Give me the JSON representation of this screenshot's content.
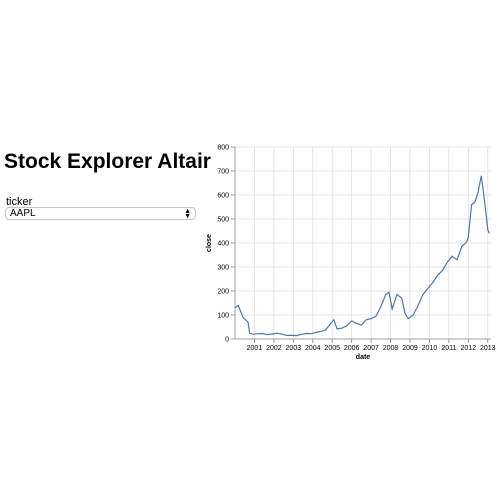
{
  "app": {
    "title": "Stock Explorer Altair"
  },
  "controls": {
    "ticker_label": "ticker",
    "ticker_value": "AAPL"
  },
  "colors": {
    "line": "#4c78a8",
    "grid": "#dddddd",
    "axis": "#888888"
  },
  "chart_data": {
    "type": "line",
    "xlabel": "date",
    "ylabel": "close",
    "xlim": [
      "2000-01",
      "2013-03"
    ],
    "ylim": [
      0,
      800
    ],
    "y_ticks": [
      0,
      100,
      200,
      300,
      400,
      500,
      600,
      700,
      800
    ],
    "x_tick_labels": [
      "2001",
      "2002",
      "2003",
      "2004",
      "2005",
      "2006",
      "2007",
      "2008",
      "2009",
      "2010",
      "2011",
      "2012",
      "2013"
    ],
    "grid": true,
    "series": [
      {
        "x": [
          "2000-01",
          "2000-03",
          "2000-06",
          "2000-09",
          "2000-10",
          "2000-12",
          "2001-03",
          "2001-06",
          "2001-09",
          "2001-12",
          "2002-03",
          "2002-06",
          "2002-09",
          "2002-12",
          "2003-03",
          "2003-06",
          "2003-09",
          "2003-12",
          "2004-03",
          "2004-06",
          "2004-09",
          "2004-12",
          "2005-02",
          "2005-04",
          "2005-07",
          "2005-10",
          "2006-01",
          "2006-04",
          "2006-07",
          "2006-10",
          "2007-01",
          "2007-04",
          "2007-07",
          "2007-10",
          "2007-12",
          "2008-02",
          "2008-05",
          "2008-08",
          "2008-10",
          "2008-12",
          "2009-03",
          "2009-06",
          "2009-09",
          "2009-12",
          "2010-03",
          "2010-06",
          "2010-09",
          "2010-12",
          "2011-03",
          "2011-06",
          "2011-09",
          "2011-12",
          "2012-01",
          "2012-03",
          "2012-05",
          "2012-07",
          "2012-09",
          "2012-10",
          "2012-12",
          "2013-01",
          "2013-02"
        ],
        "y": [
          130,
          140,
          90,
          70,
          25,
          20,
          22,
          23,
          18,
          21,
          24,
          20,
          15,
          15,
          14,
          19,
          23,
          22,
          27,
          32,
          38,
          64,
          80,
          42,
          45,
          55,
          75,
          65,
          58,
          80,
          85,
          95,
          135,
          185,
          195,
          125,
          185,
          170,
          105,
          85,
          100,
          140,
          185,
          210,
          235,
          265,
          285,
          320,
          345,
          330,
          385,
          405,
          425,
          560,
          570,
          610,
          680,
          630,
          520,
          455,
          440
        ]
      }
    ]
  }
}
